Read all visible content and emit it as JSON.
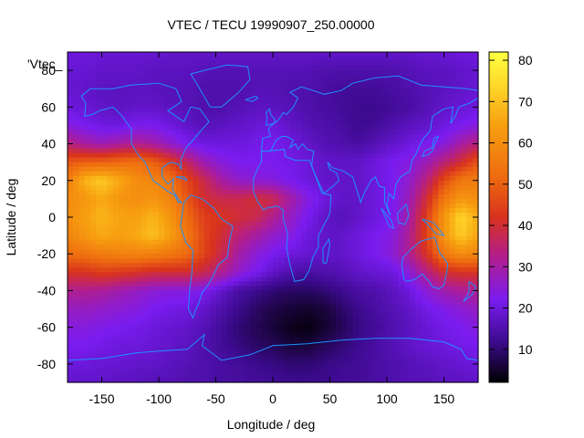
{
  "chart_data": {
    "type": "heatmap",
    "title": "VTEC / TECU 19990907_250.00000",
    "xlabel": "Longitude / deg",
    "ylabel": "Latitude / deg",
    "legend_key": "'Vtec_",
    "xlim": [
      -180,
      180
    ],
    "ylim": [
      -90,
      90
    ],
    "clim": [
      2,
      82
    ],
    "xticks": [
      -150,
      -100,
      -50,
      0,
      50,
      100,
      150
    ],
    "yticks": [
      -80,
      -60,
      -40,
      -20,
      0,
      20,
      40,
      60,
      80
    ],
    "cticks": [
      10,
      20,
      30,
      40,
      50,
      60,
      70,
      80
    ],
    "colormap": "black-purple-red-orange-yellow",
    "map_overlay": "coastlines",
    "coastline_color": "#1e90ff",
    "x": [
      -180,
      -165,
      -150,
      -135,
      -120,
      -105,
      -90,
      -75,
      -60,
      -45,
      -30,
      -15,
      0,
      15,
      30,
      45,
      60,
      75,
      90,
      105,
      120,
      135,
      150,
      165,
      180
    ],
    "y": [
      -90,
      -80,
      -70,
      -60,
      -50,
      -40,
      -30,
      -20,
      -10,
      0,
      10,
      20,
      30,
      40,
      50,
      60,
      70,
      80,
      90
    ],
    "z_rows_from_south": [
      [
        18,
        18,
        18,
        17,
        17,
        16,
        16,
        15,
        15,
        14,
        14,
        13,
        13,
        12,
        12,
        12,
        13,
        13,
        14,
        15,
        16,
        16,
        17,
        17,
        18
      ],
      [
        20,
        20,
        19,
        19,
        18,
        18,
        17,
        16,
        15,
        14,
        13,
        12,
        11,
        10,
        10,
        11,
        12,
        13,
        14,
        15,
        16,
        17,
        18,
        19,
        20
      ],
      [
        22,
        22,
        21,
        20,
        20,
        19,
        18,
        17,
        15,
        13,
        11,
        9,
        8,
        6,
        6,
        8,
        10,
        12,
        14,
        16,
        18,
        19,
        20,
        21,
        22
      ],
      [
        24,
        24,
        23,
        22,
        21,
        20,
        19,
        18,
        16,
        13,
        10,
        8,
        6,
        4,
        3,
        5,
        8,
        11,
        13,
        15,
        17,
        19,
        21,
        22,
        24
      ],
      [
        27,
        27,
        26,
        25,
        24,
        22,
        21,
        20,
        18,
        15,
        12,
        9,
        7,
        6,
        5,
        6,
        9,
        12,
        14,
        16,
        18,
        21,
        23,
        25,
        27
      ],
      [
        32,
        32,
        31,
        29,
        27,
        25,
        24,
        24,
        22,
        18,
        14,
        12,
        10,
        9,
        9,
        10,
        12,
        14,
        15,
        17,
        20,
        25,
        29,
        31,
        32
      ],
      [
        42,
        42,
        44,
        43,
        42,
        40,
        40,
        40,
        38,
        32,
        26,
        22,
        18,
        15,
        14,
        15,
        16,
        18,
        19,
        20,
        25,
        33,
        40,
        42,
        42
      ],
      [
        52,
        54,
        56,
        57,
        58,
        57,
        55,
        52,
        45,
        38,
        30,
        25,
        22,
        20,
        19,
        18,
        18,
        20,
        22,
        25,
        32,
        42,
        55,
        60,
        58
      ],
      [
        58,
        62,
        66,
        64,
        66,
        70,
        64,
        55,
        45,
        40,
        34,
        30,
        26,
        24,
        20,
        18,
        18,
        20,
        22,
        24,
        32,
        45,
        62,
        72,
        65
      ],
      [
        60,
        64,
        68,
        65,
        64,
        68,
        62,
        52,
        44,
        42,
        40,
        38,
        32,
        27,
        22,
        18,
        16,
        18,
        20,
        22,
        30,
        44,
        62,
        74,
        66
      ],
      [
        60,
        62,
        66,
        62,
        60,
        62,
        58,
        48,
        40,
        38,
        38,
        40,
        38,
        30,
        24,
        20,
        18,
        18,
        20,
        22,
        28,
        40,
        55,
        62,
        60
      ],
      [
        56,
        68,
        72,
        66,
        60,
        58,
        54,
        45,
        38,
        30,
        26,
        25,
        24,
        22,
        20,
        18,
        18,
        18,
        20,
        22,
        26,
        34,
        46,
        55,
        56
      ],
      [
        48,
        50,
        50,
        52,
        53,
        50,
        44,
        36,
        28,
        24,
        22,
        22,
        22,
        21,
        20,
        18,
        18,
        18,
        20,
        22,
        24,
        28,
        34,
        40,
        48
      ],
      [
        34,
        30,
        28,
        30,
        32,
        30,
        26,
        22,
        20,
        20,
        20,
        21,
        22,
        20,
        18,
        16,
        15,
        14,
        16,
        18,
        20,
        22,
        24,
        30,
        34
      ],
      [
        24,
        22,
        20,
        20,
        22,
        22,
        20,
        18,
        16,
        17,
        18,
        19,
        20,
        18,
        16,
        15,
        14,
        12,
        13,
        15,
        17,
        18,
        20,
        22,
        24
      ],
      [
        20,
        19,
        18,
        17,
        18,
        18,
        17,
        16,
        15,
        15,
        16,
        17,
        17,
        16,
        15,
        14,
        13,
        12,
        12,
        13,
        14,
        16,
        18,
        19,
        20
      ],
      [
        19,
        18,
        17,
        17,
        17,
        17,
        16,
        16,
        15,
        15,
        15,
        16,
        16,
        15,
        15,
        14,
        13,
        13,
        13,
        14,
        15,
        16,
        17,
        18,
        19
      ],
      [
        19,
        19,
        18,
        18,
        18,
        17,
        17,
        17,
        16,
        16,
        16,
        16,
        16,
        16,
        16,
        15,
        15,
        15,
        15,
        15,
        16,
        17,
        17,
        18,
        19
      ],
      [
        20,
        20,
        19,
        19,
        19,
        19,
        18,
        18,
        18,
        18,
        18,
        18,
        18,
        18,
        18,
        18,
        18,
        18,
        18,
        18,
        18,
        19,
        19,
        20,
        20
      ]
    ]
  }
}
